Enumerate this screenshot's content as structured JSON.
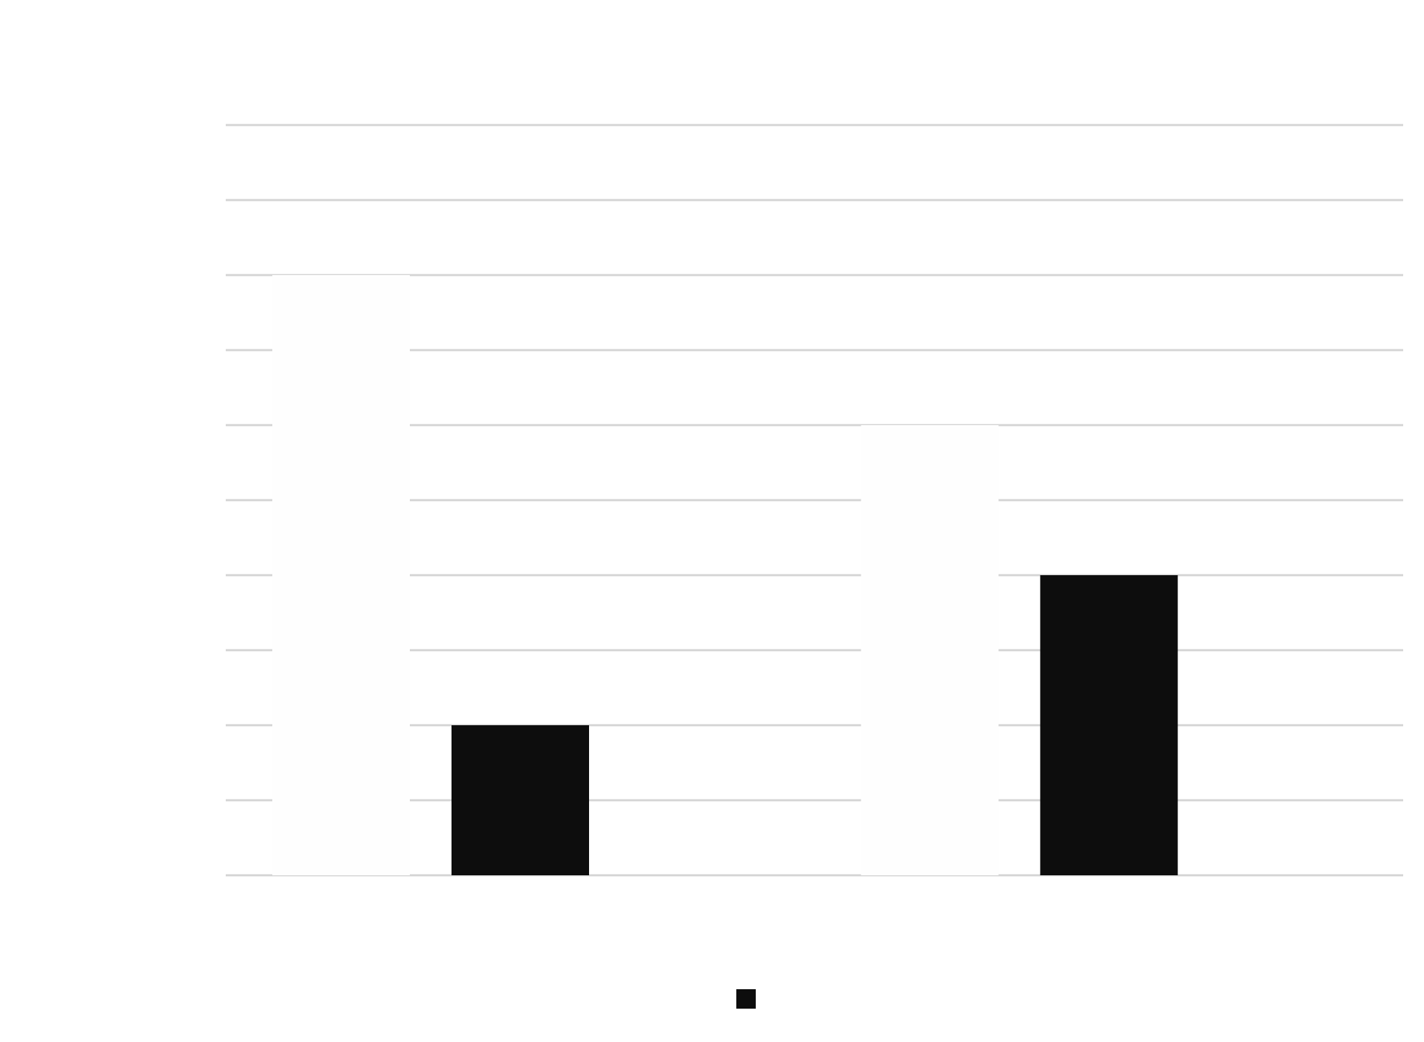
{
  "chart_data": {
    "type": "bar",
    "categories": [
      "",
      ""
    ],
    "series": [
      {
        "values": [
          8,
          6
        ],
        "color": "#fefefe"
      },
      {
        "values": [
          2,
          4
        ],
        "color": "#0d0d0d"
      }
    ],
    "ylim": [
      0,
      10
    ],
    "grid": true,
    "gridline_color": "#d4d4d4",
    "legend": {
      "position": "bottom-center",
      "entries": [
        {
          "label": "",
          "color": "#0d0d0d"
        }
      ]
    },
    "title": "",
    "xlabel": "",
    "ylabel": ""
  }
}
